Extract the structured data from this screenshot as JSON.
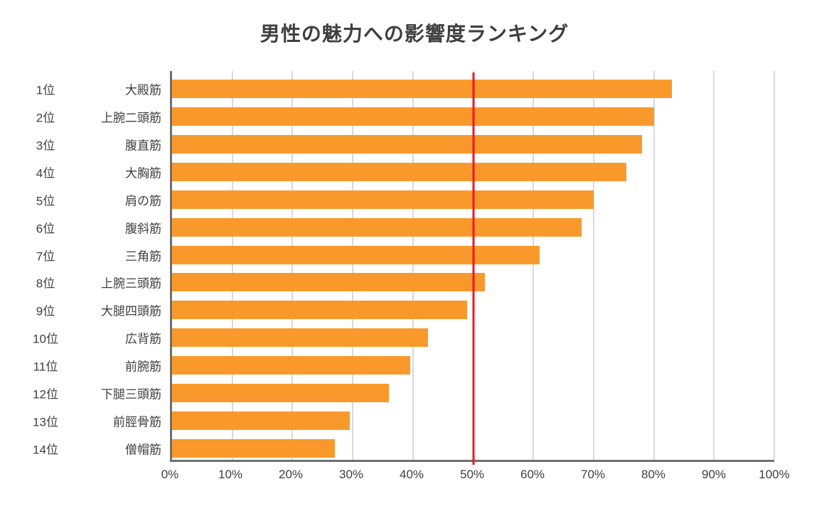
{
  "chart_data": {
    "type": "bar",
    "orientation": "horizontal",
    "title": "男性の魅力への影響度ランキング",
    "rows": [
      {
        "rank": "1位",
        "label": "大殿筋",
        "value": 83
      },
      {
        "rank": "2位",
        "label": "上腕二頭筋",
        "value": 80
      },
      {
        "rank": "3位",
        "label": "腹直筋",
        "value": 78
      },
      {
        "rank": "4位",
        "label": "大胸筋",
        "value": 75.5
      },
      {
        "rank": "5位",
        "label": "肩の筋",
        "value": 70
      },
      {
        "rank": "6位",
        "label": "腹斜筋",
        "value": 68
      },
      {
        "rank": "7位",
        "label": "三角筋",
        "value": 61
      },
      {
        "rank": "8位",
        "label": "上腕三頭筋",
        "value": 52
      },
      {
        "rank": "9位",
        "label": "大腿四頭筋",
        "value": 49
      },
      {
        "rank": "10位",
        "label": "広背筋",
        "value": 42.5
      },
      {
        "rank": "11位",
        "label": "前腕筋",
        "value": 39.5
      },
      {
        "rank": "12位",
        "label": "下腿三頭筋",
        "value": 36
      },
      {
        "rank": "13位",
        "label": "前脛骨筋",
        "value": 29.5
      },
      {
        "rank": "14位",
        "label": "僧帽筋",
        "value": 27
      }
    ],
    "xlim": [
      0,
      100
    ],
    "x_ticks": [
      0,
      10,
      20,
      30,
      40,
      50,
      60,
      70,
      80,
      90,
      100
    ],
    "x_tick_labels": [
      "0%",
      "10%",
      "20%",
      "30%",
      "40%",
      "50%",
      "60%",
      "70%",
      "80%",
      "90%",
      "100%"
    ],
    "reference_line": {
      "value": 50,
      "color": "#f01722"
    },
    "grid": true,
    "legend": "none",
    "colors": {
      "bar": "#f9992b",
      "gridline": "#d9d9d9",
      "axis": "#6e6e6e",
      "text": "#3f3f3f",
      "background": "#ffffff"
    }
  }
}
